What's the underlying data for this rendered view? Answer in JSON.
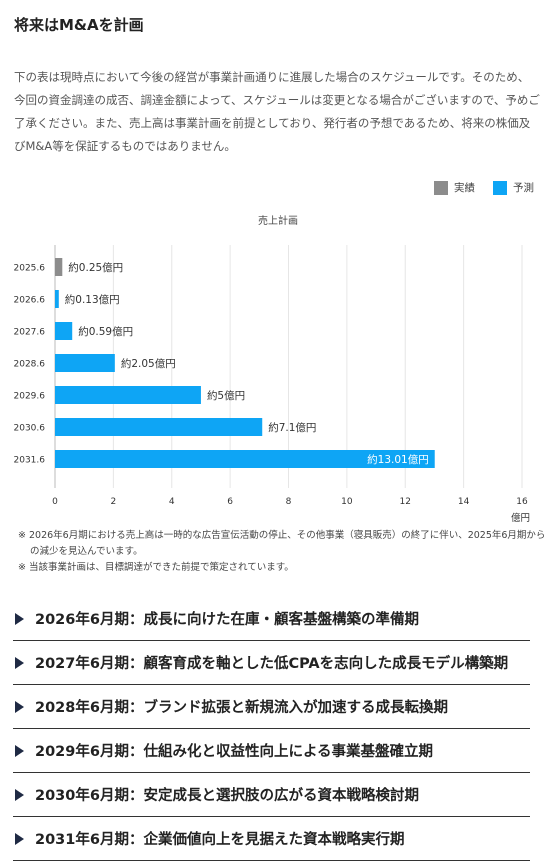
{
  "page": {
    "title": "将来はM&Aを計画",
    "intro": "下の表は現時点において今後の経営が事業計画通りに進展した場合のスケジュールです。そのため、今回の資金調達の成否、調達金額によって、スケジュールは変更となる場合がございますので、予めご了承ください。また、売上高は事業計画を前提としており、発行者の予想であるため、将来の株価及びM&A等を保証するものではありません。"
  },
  "legend": [
    {
      "label": "実績",
      "color": "#8c8c8c"
    },
    {
      "label": "予測",
      "color": "#0ea5f5"
    }
  ],
  "chart_data": {
    "type": "bar",
    "orientation": "horizontal",
    "title": "売上計画",
    "xlabel": "億円",
    "categories": [
      "2025.6",
      "2026.6",
      "2027.6",
      "2028.6",
      "2029.6",
      "2030.6",
      "2031.6"
    ],
    "values": [
      0.25,
      0.13,
      0.59,
      2.05,
      5,
      7.1,
      13.01
    ],
    "status": [
      "実績",
      "予測",
      "予測",
      "予測",
      "予測",
      "予測",
      "予測"
    ],
    "data_labels": [
      "約0.25億円",
      "約0.13億円",
      "約0.59億円",
      "約2.05億円",
      "約5億円",
      "約7.1億円",
      "約13.01億円"
    ],
    "xlim": [
      0,
      16
    ],
    "xticks": [
      0,
      2,
      4,
      6,
      8,
      10,
      12,
      14,
      16
    ],
    "grid": true,
    "legend_position": "top-right",
    "colors": {
      "actual": "#8c8c8c",
      "forecast": "#0ea5f5"
    }
  },
  "notes": [
    "※ 2026年6月期における売上高は一時的な広告宣伝活動の停止、その他事業（寝具販売）の終了に伴い、2025年6月期からの減少を見込んでいます。",
    "※ 当該事業計画は、目標調達ができた前提で策定されています。"
  ],
  "phases": [
    "2026年6月期：成長に向けた在庫・顧客基盤構築の準備期",
    "2027年6月期：顧客育成を軸とした低CPAを志向した成長モデル構築期",
    "2028年6月期：ブランド拡張と新規流入が加速する成長転換期",
    "2029年6月期：仕組み化と収益性向上による事業基盤確立期",
    "2030年6月期：安定成長と選択肢の広がる資本戦略検討期",
    "2031年6月期：企業価値向上を見据えた資本戦略実行期"
  ]
}
